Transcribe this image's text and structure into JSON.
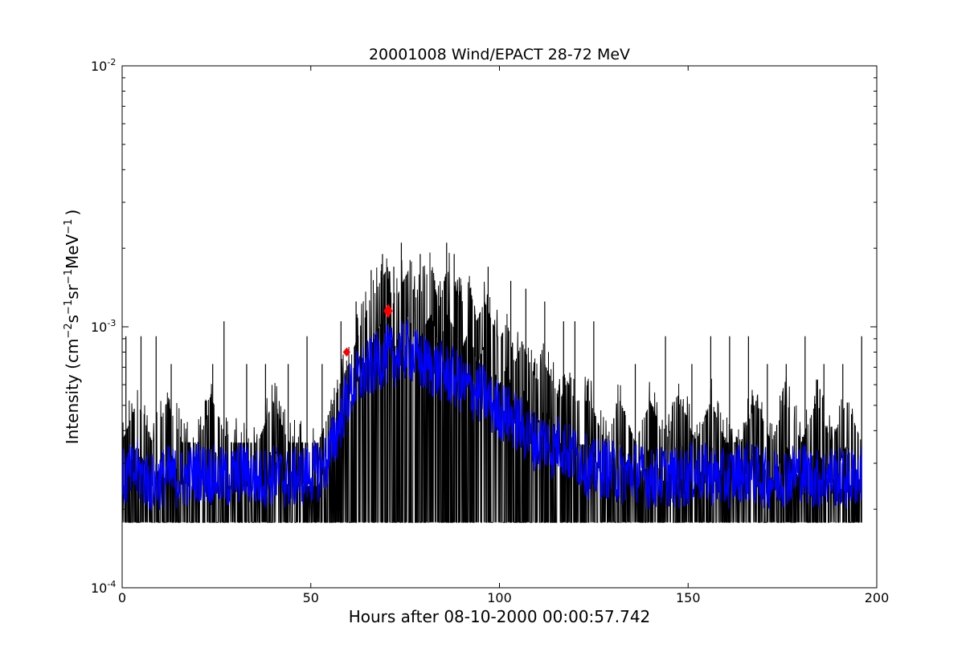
{
  "chart_data": {
    "type": "line",
    "title": "20001008 Wind/EPACT 28-72 MeV",
    "xlabel": "Hours after 08-10-2000 00:00:57.742",
    "ylabel": "Intensity (cm⁻²s⁻¹sr⁻¹MeV⁻¹)",
    "ylabel_parts": {
      "prefix": "Intensity (",
      "u1": "cm",
      "e1": "−2",
      "u2": "s",
      "e2": "−1",
      "u3": "sr",
      "e3": "−1",
      "u4": "MeV",
      "e4": "−1",
      "suffix": ")"
    },
    "xlim": [
      0,
      200
    ],
    "ylim": [
      0.0001,
      0.01
    ],
    "yscale": "log",
    "grid": false,
    "x_ticks": [
      "0",
      "50",
      "100",
      "150",
      "200"
    ],
    "y_ticks": [
      {
        "base": "10",
        "exp": "-2"
      },
      {
        "base": "10",
        "exp": "-3"
      },
      {
        "base": "10",
        "exp": "-4"
      }
    ],
    "colors": {
      "raw": "#000000",
      "smoothed": "#0000ff",
      "markers": "#ff0000"
    },
    "series": [
      {
        "style": "black-line",
        "x": [
          0,
          4,
          8,
          12,
          16,
          20,
          24,
          28,
          32,
          36,
          40,
          44,
          48,
          52,
          56,
          58,
          60,
          62,
          64,
          66,
          68,
          70,
          72,
          74,
          76,
          78,
          80,
          82,
          84,
          86,
          88,
          90,
          92,
          94,
          96,
          98,
          100,
          102,
          104,
          106,
          108,
          110,
          112,
          114,
          116,
          118,
          120,
          124,
          128,
          132,
          136,
          140,
          144,
          148,
          152,
          156,
          160,
          164,
          168,
          172,
          176,
          180,
          184,
          188,
          192,
          196
        ],
        "y": [
          0.00036,
          0.00052,
          0.00036,
          0.00052,
          0.00036,
          0.00036,
          0.00052,
          0.00036,
          0.00036,
          0.00036,
          0.00052,
          0.00036,
          0.00036,
          0.00036,
          0.00052,
          0.00062,
          0.00072,
          0.00088,
          0.00105,
          0.00125,
          0.00145,
          0.00165,
          0.0012,
          0.00145,
          0.00165,
          0.0012,
          0.00145,
          0.00165,
          0.0012,
          0.00165,
          0.00145,
          0.0012,
          0.00145,
          0.00105,
          0.00125,
          0.00105,
          0.00088,
          0.00105,
          0.00072,
          0.00088,
          0.00072,
          0.00062,
          0.00072,
          0.00062,
          0.00052,
          0.00062,
          0.00052,
          0.00052,
          0.00036,
          0.00052,
          0.00036,
          0.00052,
          0.00036,
          0.00052,
          0.00036,
          0.00052,
          0.00036,
          0.00036,
          0.00052,
          0.00036,
          0.00052,
          0.00036,
          0.00052,
          0.00036,
          0.00052,
          0.00036
        ],
        "floor": 0.000178,
        "spikes_x": [
          1,
          5,
          9,
          13,
          24,
          27,
          33,
          38,
          44,
          49,
          53,
          58,
          62,
          66,
          69,
          72,
          74,
          79,
          86,
          88,
          97,
          103,
          107,
          112,
          117,
          120,
          125,
          136,
          144,
          151,
          156,
          161,
          166,
          171,
          176,
          181,
          186,
          191,
          196
        ],
        "spikes_y": [
          0.00092,
          0.00092,
          0.00092,
          0.00072,
          0.00072,
          0.00105,
          0.00072,
          0.00072,
          0.00072,
          0.00092,
          0.00072,
          0.00105,
          0.00125,
          0.00165,
          0.0019,
          0.0017,
          0.0021,
          0.0019,
          0.0021,
          0.0019,
          0.0017,
          0.0015,
          0.0014,
          0.00125,
          0.00105,
          0.00105,
          0.00105,
          0.00072,
          0.00092,
          0.00072,
          0.00092,
          0.00092,
          0.00092,
          0.00072,
          0.00072,
          0.00092,
          0.00072,
          0.00072,
          0.00092
        ]
      },
      {
        "style": "blue-line",
        "x": [
          0,
          4,
          8,
          12,
          16,
          20,
          24,
          28,
          32,
          36,
          40,
          44,
          48,
          52,
          54,
          56,
          58,
          60,
          62,
          64,
          66,
          68,
          70,
          72,
          74,
          76,
          78,
          80,
          82,
          84,
          86,
          88,
          90,
          92,
          94,
          96,
          98,
          100,
          102,
          104,
          106,
          108,
          110,
          112,
          114,
          116,
          118,
          120,
          122,
          124,
          128,
          132,
          136,
          140,
          144,
          148,
          152,
          156,
          160,
          164,
          168,
          172,
          176,
          180,
          184,
          188,
          192,
          196
        ],
        "y": [
          0.00026,
          0.00028,
          0.00025,
          0.00027,
          0.00026,
          0.00028,
          0.00027,
          0.00026,
          0.00028,
          0.00026,
          0.00027,
          0.00026,
          0.00027,
          0.00028,
          0.0003,
          0.00036,
          0.00045,
          0.00055,
          0.00062,
          0.00066,
          0.0007,
          0.00074,
          0.00078,
          0.00076,
          0.0008,
          0.00082,
          0.00075,
          0.00072,
          0.0007,
          0.00068,
          0.00066,
          0.00064,
          0.0006,
          0.00058,
          0.00056,
          0.00055,
          0.0005,
          0.00048,
          0.00046,
          0.00044,
          0.00041,
          0.00038,
          0.00036,
          0.00037,
          0.00034,
          0.00036,
          0.00033,
          0.00032,
          0.00031,
          0.00028,
          0.00029,
          0.00027,
          0.00028,
          0.00026,
          0.00027,
          0.00026,
          0.00028,
          0.00027,
          0.00026,
          0.00028,
          0.00027,
          0.00026,
          0.00027,
          0.00028,
          0.00026,
          0.00027,
          0.00026,
          0.00027
        ]
      }
    ],
    "markers": [
      {
        "x": 59.5,
        "y": 0.0008,
        "size": "small"
      },
      {
        "x": 70.5,
        "y": 0.00115,
        "size": "large"
      }
    ]
  }
}
